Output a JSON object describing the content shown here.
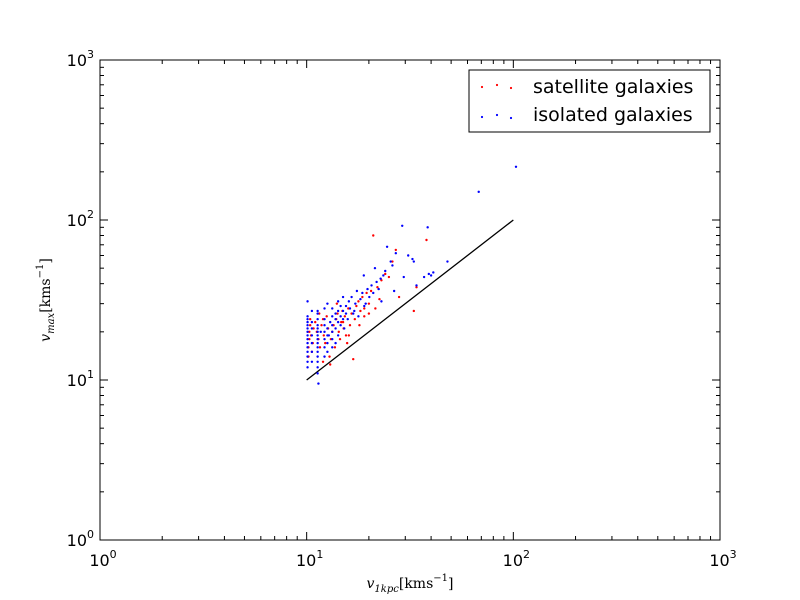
{
  "chart_data": {
    "type": "scatter",
    "title": "",
    "xlabel": "v_{1kpc}[kms^{-1}]",
    "ylabel": "v_{max}[kms^{-1}]",
    "xscale": "log",
    "yscale": "log",
    "xlim": [
      1,
      1000
    ],
    "ylim": [
      1,
      1000
    ],
    "x_ticks": [
      {
        "base": "10",
        "exp": "0"
      },
      {
        "base": "10",
        "exp": "1"
      },
      {
        "base": "10",
        "exp": "2"
      },
      {
        "base": "10",
        "exp": "3"
      }
    ],
    "y_ticks": [
      {
        "base": "10",
        "exp": "0"
      },
      {
        "base": "10",
        "exp": "1"
      },
      {
        "base": "10",
        "exp": "2"
      },
      {
        "base": "10",
        "exp": "3"
      }
    ],
    "legend_position": "top-right",
    "grid": false,
    "reference_line": {
      "x": [
        10,
        100
      ],
      "y": [
        10,
        100
      ],
      "color": "#000000"
    },
    "series": [
      {
        "name": "satellite galaxies",
        "color": "#ff0000",
        "points": [
          [
            10.2,
            14
          ],
          [
            10.2,
            16
          ],
          [
            10.3,
            18
          ],
          [
            10.3,
            20
          ],
          [
            10.4,
            22
          ],
          [
            10.4,
            24
          ],
          [
            10.5,
            19
          ],
          [
            10.6,
            15
          ],
          [
            10.7,
            17
          ],
          [
            10.8,
            21
          ],
          [
            11.0,
            23
          ],
          [
            11.2,
            20
          ],
          [
            11.4,
            18
          ],
          [
            11.6,
            16
          ],
          [
            11.8,
            22
          ],
          [
            12.0,
            24
          ],
          [
            12.1,
            19
          ],
          [
            12.3,
            17
          ],
          [
            12.5,
            25
          ],
          [
            12.7,
            21
          ],
          [
            12.9,
            14
          ],
          [
            13.1,
            18
          ],
          [
            13.3,
            20
          ],
          [
            13.5,
            22
          ],
          [
            13.7,
            16
          ],
          [
            13.9,
            24
          ],
          [
            14.1,
            26
          ],
          [
            14.3,
            20
          ],
          [
            14.5,
            18
          ],
          [
            14.7,
            23
          ],
          [
            14.9,
            27
          ],
          [
            15.1,
            21
          ],
          [
            15.3,
            25
          ],
          [
            15.5,
            19
          ],
          [
            15.7,
            17
          ],
          [
            15.9,
            28
          ],
          [
            16.2,
            22
          ],
          [
            16.5,
            26
          ],
          [
            16.8,
            13.5
          ],
          [
            17.1,
            24
          ],
          [
            17.4,
            29
          ],
          [
            17.8,
            31
          ],
          [
            18.2,
            27
          ],
          [
            18.6,
            33
          ],
          [
            19.0,
            25
          ],
          [
            19.5,
            35
          ],
          [
            20.0,
            30
          ],
          [
            20.5,
            36
          ],
          [
            21.0,
            80
          ],
          [
            21.5,
            28
          ],
          [
            22.0,
            38
          ],
          [
            22.5,
            32
          ],
          [
            23.0,
            42
          ],
          [
            24.0,
            46
          ],
          [
            25.0,
            44
          ],
          [
            26.0,
            55
          ],
          [
            27.0,
            65
          ],
          [
            28.0,
            33
          ],
          [
            33.0,
            27
          ],
          [
            34.0,
            38
          ],
          [
            38.0,
            75
          ],
          [
            12.0,
            13
          ],
          [
            13.0,
            12.5
          ],
          [
            11.5,
            26
          ],
          [
            14.0,
            30
          ],
          [
            15.0,
            23
          ],
          [
            16.0,
            19
          ],
          [
            18.0,
            22
          ],
          [
            19.0,
            28
          ],
          [
            20.0,
            26
          ]
        ]
      },
      {
        "name": "isolated galaxies",
        "color": "#0000ff",
        "points": [
          [
            10.1,
            12
          ],
          [
            10.1,
            13
          ],
          [
            10.1,
            14
          ],
          [
            10.1,
            15
          ],
          [
            10.1,
            16
          ],
          [
            10.1,
            17
          ],
          [
            10.1,
            18
          ],
          [
            10.1,
            19
          ],
          [
            10.1,
            20
          ],
          [
            10.1,
            21
          ],
          [
            10.1,
            22
          ],
          [
            10.1,
            23
          ],
          [
            10.1,
            24
          ],
          [
            10.1,
            25
          ],
          [
            10.1,
            31
          ],
          [
            10.6,
            13
          ],
          [
            10.6,
            15
          ],
          [
            10.6,
            17
          ],
          [
            10.6,
            19
          ],
          [
            10.6,
            21
          ],
          [
            10.6,
            23
          ],
          [
            10.6,
            27
          ],
          [
            11.3,
            11
          ],
          [
            11.3,
            12
          ],
          [
            11.3,
            13
          ],
          [
            11.3,
            14
          ],
          [
            11.3,
            15
          ],
          [
            11.3,
            16
          ],
          [
            11.3,
            17
          ],
          [
            11.3,
            18
          ],
          [
            11.3,
            19
          ],
          [
            11.3,
            20
          ],
          [
            11.3,
            21
          ],
          [
            11.3,
            22
          ],
          [
            11.3,
            24
          ],
          [
            11.3,
            26
          ],
          [
            11.3,
            27
          ],
          [
            11.4,
            9.5
          ],
          [
            12.2,
            14
          ],
          [
            12.2,
            16
          ],
          [
            12.2,
            18
          ],
          [
            12.2,
            20
          ],
          [
            12.2,
            22
          ],
          [
            12.2,
            24
          ],
          [
            12.2,
            28
          ],
          [
            12.6,
            30
          ],
          [
            12.6,
            15
          ],
          [
            12.6,
            17
          ],
          [
            12.6,
            19
          ],
          [
            12.6,
            21
          ],
          [
            13.3,
            16
          ],
          [
            13.3,
            18
          ],
          [
            13.3,
            20
          ],
          [
            13.3,
            22
          ],
          [
            13.3,
            25
          ],
          [
            13.3,
            28
          ],
          [
            13.8,
            17
          ],
          [
            13.8,
            21
          ],
          [
            13.8,
            24
          ],
          [
            13.8,
            26
          ],
          [
            14.2,
            19
          ],
          [
            14.2,
            23
          ],
          [
            14.2,
            27
          ],
          [
            14.2,
            31
          ],
          [
            14.6,
            22
          ],
          [
            14.6,
            25
          ],
          [
            14.6,
            29
          ],
          [
            15.0,
            24
          ],
          [
            15.0,
            27
          ],
          [
            15.0,
            33
          ],
          [
            15.5,
            26
          ],
          [
            15.5,
            29
          ],
          [
            15.8,
            24
          ],
          [
            16.0,
            31
          ],
          [
            16.2,
            28
          ],
          [
            16.5,
            33
          ],
          [
            16.8,
            26
          ],
          [
            17.2,
            30
          ],
          [
            17.5,
            36
          ],
          [
            17.8,
            25
          ],
          [
            18.2,
            32
          ],
          [
            18.6,
            35
          ],
          [
            18.9,
            45
          ],
          [
            19.3,
            30
          ],
          [
            19.7,
            37
          ],
          [
            20.1,
            33
          ],
          [
            20.6,
            39
          ],
          [
            21.0,
            35
          ],
          [
            21.4,
            50
          ],
          [
            21.8,
            41
          ],
          [
            22.3,
            37
          ],
          [
            22.8,
            43
          ],
          [
            23.5,
            45
          ],
          [
            24.0,
            48
          ],
          [
            24.5,
            68
          ],
          [
            25.5,
            55
          ],
          [
            26.0,
            52
          ],
          [
            27.0,
            62
          ],
          [
            29.0,
            92
          ],
          [
            31.0,
            60
          ],
          [
            32.5,
            57
          ],
          [
            33.0,
            55
          ],
          [
            34.0,
            39
          ],
          [
            37.0,
            44
          ],
          [
            38.5,
            90
          ],
          [
            39.0,
            46
          ],
          [
            40.0,
            45
          ],
          [
            41.0,
            47
          ],
          [
            48.0,
            55
          ],
          [
            68.0,
            150
          ],
          [
            103.0,
            215
          ],
          [
            26.5,
            36
          ],
          [
            29.5,
            44
          ],
          [
            23.0,
            31
          ],
          [
            19.0,
            29
          ],
          [
            17.0,
            27
          ],
          [
            15.2,
            21
          ],
          [
            13.0,
            23
          ],
          [
            12.8,
            19
          ],
          [
            11.7,
            20
          ]
        ]
      }
    ]
  }
}
